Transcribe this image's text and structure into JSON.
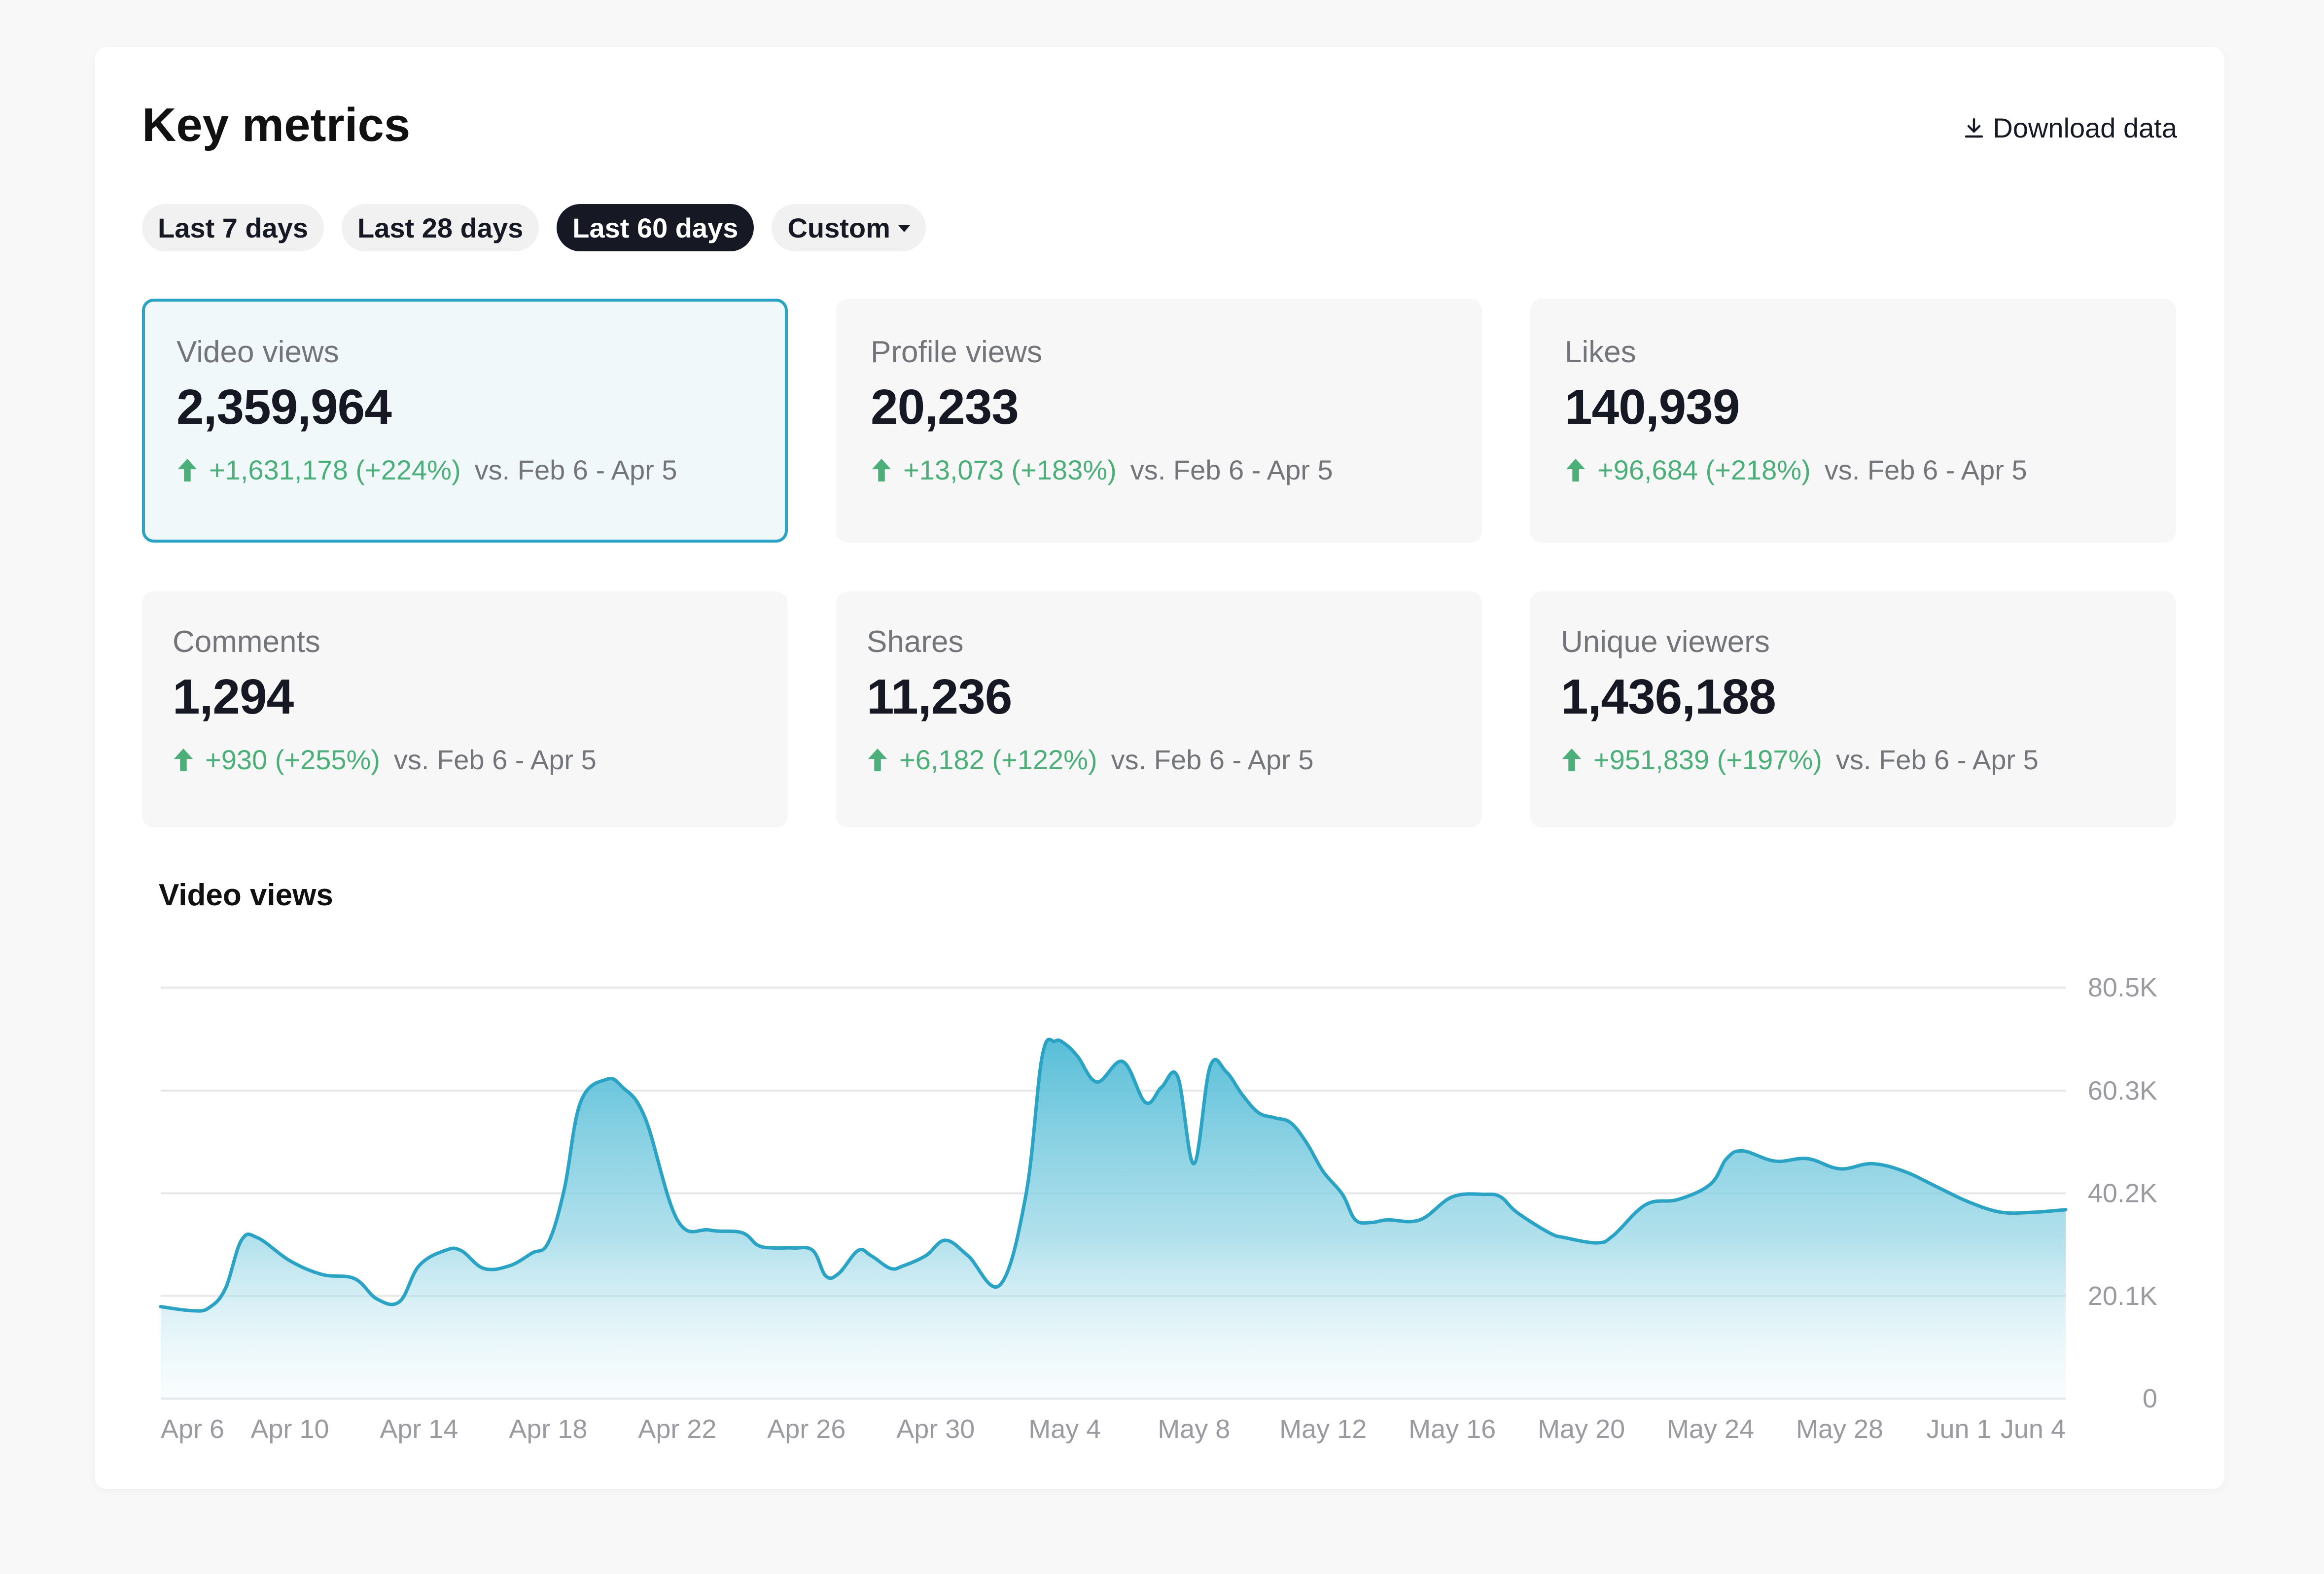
{
  "header": {
    "title": "Key metrics",
    "download_label": "Download data"
  },
  "filters": [
    {
      "label": "Last 7 days",
      "active": false
    },
    {
      "label": "Last 28 days",
      "active": false
    },
    {
      "label": "Last 60 days",
      "active": true
    },
    {
      "label": "Custom",
      "active": false,
      "dropdown": true
    }
  ],
  "metrics": [
    {
      "label": "Video views",
      "value": "2,359,964",
      "change": "+1,631,178 (+224%)",
      "vs": "vs.  Feb 6 - Apr 5",
      "selected": true
    },
    {
      "label": "Profile views",
      "value": "20,233",
      "change": "+13,073 (+183%)",
      "vs": "vs.  Feb 6 - Apr 5",
      "selected": false
    },
    {
      "label": "Likes",
      "value": "140,939",
      "change": "+96,684 (+218%)",
      "vs": "vs.  Feb 6 - Apr 5",
      "selected": false
    },
    {
      "label": "Comments",
      "value": "1,294",
      "change": "+930 (+255%)",
      "vs": "vs.  Feb 6 - Apr 5",
      "selected": false
    },
    {
      "label": "Shares",
      "value": "11,236",
      "change": "+6,182 (+122%)",
      "vs": "vs.  Feb 6 - Apr 5",
      "selected": false
    },
    {
      "label": "Unique viewers",
      "value": "1,436,188",
      "change": "+951,839 (+197%)",
      "vs": "vs.  Feb 6 - Apr 5",
      "selected": false
    }
  ],
  "colors": {
    "accent": "#2ba3c4",
    "positive": "#4caf7a",
    "active_pill": "#161823"
  },
  "chart_data": {
    "type": "area",
    "title": "Video views",
    "y_ticks": [
      {
        "label": "80.5K",
        "value": 80500
      },
      {
        "label": "60.3K",
        "value": 60300
      },
      {
        "label": "40.2K",
        "value": 40200
      },
      {
        "label": "20.1K",
        "value": 20100
      },
      {
        "label": "0",
        "value": 0
      }
    ],
    "ylim": [
      0,
      80500
    ],
    "grid": true,
    "x_ticks": [
      "Apr 6",
      "Apr 10",
      "Apr 14",
      "Apr 18",
      "Apr 22",
      "Apr 26",
      "Apr 30",
      "May 4",
      "May 8",
      "May 12",
      "May 16",
      "May 20",
      "May 24",
      "May 28",
      "Jun 1",
      "Jun 4"
    ],
    "x_tick_days": [
      0,
      4,
      8,
      12,
      16,
      20,
      24,
      28,
      32,
      36,
      40,
      44,
      48,
      52,
      56,
      59
    ],
    "series": [
      {
        "x_days": [
          0,
          1,
          1.5,
          2,
          2.5,
          3,
          4,
          5,
          6,
          6.7,
          7.4,
          8,
          8.8,
          9.3,
          10,
          10.8,
          11.5,
          12,
          12.5,
          13,
          13.8,
          14.3,
          15,
          16,
          17,
          18,
          18.5,
          19,
          19.6,
          20.2,
          20.6,
          21,
          21.6,
          22,
          22.6,
          23,
          23.7,
          24.3,
          25,
          26,
          26.8,
          27.3,
          27.7,
          28,
          28.4,
          29,
          29.8,
          30.5,
          31,
          31.5,
          32,
          32.5,
          33,
          33.5,
          34,
          34.5,
          35,
          35.5,
          36,
          36.6,
          37,
          37.5,
          38,
          39,
          40,
          41,
          41.5,
          42,
          43,
          43.5,
          44.5,
          45,
          46,
          47,
          48,
          48.5,
          49,
          50,
          51,
          52,
          53,
          54,
          55,
          56,
          57,
          58,
          59
        ],
        "y": [
          18000,
          17200,
          17800,
          21500,
          31000,
          31500,
          27000,
          24300,
          23500,
          19500,
          19000,
          26000,
          29000,
          29000,
          25500,
          26000,
          28500,
          30500,
          41000,
          58000,
          62500,
          61000,
          55000,
          35000,
          33000,
          32500,
          30000,
          29500,
          29500,
          29000,
          24000,
          24500,
          29000,
          28000,
          25500,
          26000,
          28000,
          31000,
          28000,
          22300,
          40000,
          67000,
          70000,
          69500,
          67000,
          62000,
          66000,
          58000,
          61000,
          63000,
          46000,
          65000,
          64000,
          59500,
          56000,
          55000,
          54000,
          50000,
          44500,
          40000,
          35000,
          34500,
          35000,
          35000,
          39500,
          40000,
          39500,
          36500,
          32500,
          31500,
          30500,
          32000,
          38000,
          39000,
          42000,
          47000,
          48500,
          46500,
          47000,
          45000,
          46000,
          44500,
          41500,
          38500,
          36500,
          36500,
          37000
        ]
      }
    ]
  }
}
